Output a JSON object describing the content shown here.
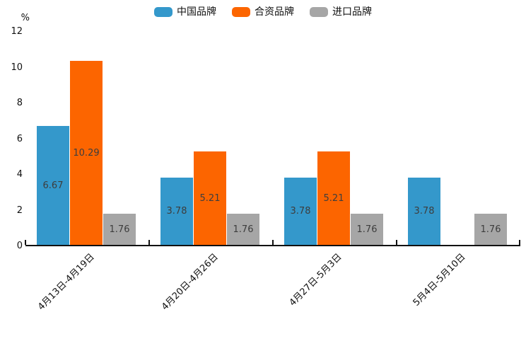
{
  "chart_data": {
    "type": "bar",
    "title": "",
    "xlabel": "",
    "ylabel": "%",
    "unit_label": "%",
    "categories": [
      "4月13日-4月19日",
      "4月20日-4月26日",
      "4月27日-5月3日",
      "5月4日-5月10日"
    ],
    "series": [
      {
        "name": "中国品牌",
        "color": "#3498cb",
        "values": [
          6.67,
          3.78,
          3.78,
          3.78
        ]
      },
      {
        "name": "合资品牌",
        "color": "#fc6500",
        "values": [
          10.29,
          5.21,
          5.21,
          null
        ]
      },
      {
        "name": "进口品牌",
        "color": "#a6a6a6",
        "values": [
          1.76,
          1.76,
          1.76,
          1.76
        ]
      }
    ],
    "value_labels": {
      "中国品牌": [
        "6.67",
        "3.78",
        "3.78",
        "3.78"
      ],
      "合资品牌": [
        "10.29",
        "5.21",
        "5.21",
        ""
      ],
      "进口品牌": [
        "1.76",
        "1.76",
        "1.76",
        "1.76"
      ]
    },
    "ylim": [
      0,
      12
    ],
    "y_ticks": [
      0,
      2,
      4,
      6,
      8,
      10,
      12
    ],
    "grid": false,
    "legend_position": "top",
    "axis_color": "#111111",
    "value_label_color": "#3d3d3d",
    "background_color": "#ffffff"
  }
}
